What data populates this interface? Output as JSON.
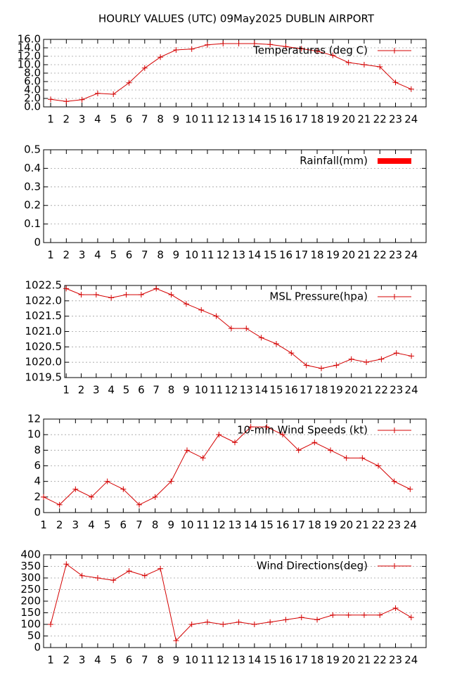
{
  "title": "HOURLY VALUES (UTC) 09May2025  DUBLIN AIRPORT",
  "chart_data": [
    {
      "type": "line",
      "ylim": [
        0,
        16
      ],
      "xlim": [
        0.55,
        24.95
      ],
      "grid": true,
      "yticks": [
        {
          "value": 0,
          "label": "0.0"
        },
        {
          "value": 2,
          "label": "2.0"
        },
        {
          "value": 4,
          "label": "4.0"
        },
        {
          "value": 6,
          "label": "6.0"
        },
        {
          "value": 8,
          "label": "8.0"
        },
        {
          "value": 10,
          "label": "10.0"
        },
        {
          "value": 12,
          "label": "12.0"
        },
        {
          "value": 14,
          "label": "14.0"
        },
        {
          "value": 16,
          "label": "16.0"
        }
      ],
      "xticks": [
        1,
        2,
        3,
        4,
        5,
        6,
        7,
        8,
        9,
        10,
        11,
        12,
        13,
        14,
        15,
        16,
        17,
        18,
        19,
        20,
        21,
        22,
        23,
        24
      ],
      "x": [
        1,
        2,
        3,
        4,
        5,
        6,
        7,
        8,
        9,
        10,
        11,
        12,
        13,
        14,
        15,
        16,
        17,
        18,
        19,
        20,
        21,
        22,
        23,
        24
      ],
      "series": [
        {
          "name": "Temperatures (deg C)",
          "color": "#d40000",
          "values": [
            1.8,
            1.3,
            1.7,
            3.2,
            3.0,
            5.7,
            9.2,
            11.8,
            13.5,
            13.7,
            14.7,
            15.0,
            15.0,
            15.0,
            14.8,
            14.3,
            13.8,
            13.2,
            12.2,
            10.5,
            10.0,
            9.5,
            5.8,
            4.2
          ]
        }
      ]
    },
    {
      "type": "bar",
      "ylim": [
        0,
        0.5
      ],
      "xlim": [
        0.55,
        24.95
      ],
      "grid": true,
      "yticks": [
        0,
        0.1,
        0.2,
        0.3,
        0.4,
        0.5
      ],
      "xticks": [
        1,
        2,
        3,
        4,
        5,
        6,
        7,
        8,
        9,
        10,
        11,
        12,
        13,
        14,
        15,
        16,
        17,
        18,
        19,
        20,
        21,
        22,
        23,
        24
      ],
      "x": [
        1,
        2,
        3,
        4,
        5,
        6,
        7,
        8,
        9,
        10,
        11,
        12,
        13,
        14,
        15,
        16,
        17,
        18,
        19,
        20,
        21,
        22,
        23,
        24
      ],
      "series": [
        {
          "name": "Rainfall(mm)",
          "color": "#ff0000",
          "values": [
            0,
            0,
            0,
            0,
            0,
            0,
            0,
            0,
            0,
            0,
            0,
            0,
            0,
            0,
            0,
            0,
            0,
            0,
            0,
            0,
            0,
            0,
            0,
            0
          ]
        }
      ]
    },
    {
      "type": "line",
      "ylim": [
        1019.5,
        1022.5
      ],
      "xlim": [
        0.9,
        24.98
      ],
      "grid": true,
      "yticks": [
        1019.5,
        {
          "value": 1020,
          "label": "1020.0"
        },
        1020.5,
        {
          "value": 1021,
          "label": "1021.0"
        },
        1021.5,
        {
          "value": 1022,
          "label": "1022.0"
        },
        1022.5
      ],
      "xticks": [
        1,
        2,
        3,
        4,
        5,
        6,
        7,
        8,
        9,
        10,
        11,
        12,
        13,
        14,
        15,
        16,
        17,
        18,
        19,
        20,
        21,
        22,
        23,
        24
      ],
      "x": [
        1,
        2,
        3,
        4,
        5,
        6,
        7,
        8,
        9,
        10,
        11,
        12,
        13,
        14,
        15,
        16,
        17,
        18,
        19,
        20,
        21,
        22,
        23,
        24
      ],
      "series": [
        {
          "name": "MSL Pressure(hpa)",
          "color": "#d40000",
          "values": [
            1022.4,
            1022.2,
            1022.2,
            1022.1,
            1022.2,
            1022.2,
            1022.4,
            1022.2,
            1021.9,
            1021.7,
            1021.5,
            1021.1,
            1021.1,
            1020.8,
            1020.6,
            1020.3,
            1019.9,
            1019.8,
            1019.9,
            1020.1,
            1020.0,
            1020.1,
            1020.3,
            1020.2
          ]
        }
      ]
    },
    {
      "type": "line",
      "ylim": [
        0,
        12
      ],
      "xlim": [
        1,
        25
      ],
      "grid": true,
      "yticks": [
        0,
        2,
        4,
        6,
        8,
        10,
        12
      ],
      "xticks": [
        1,
        2,
        3,
        4,
        5,
        6,
        7,
        8,
        9,
        10,
        11,
        12,
        13,
        14,
        15,
        16,
        17,
        18,
        19,
        20,
        21,
        22,
        23,
        24
      ],
      "x": [
        1,
        2,
        3,
        4,
        5,
        6,
        7,
        8,
        9,
        10,
        11,
        12,
        13,
        14,
        15,
        16,
        17,
        18,
        19,
        20,
        21,
        22,
        23,
        24
      ],
      "series": [
        {
          "name": "10-min Wind Speeds (kt)",
          "color": "#d40000",
          "values": [
            2,
            1,
            3,
            2,
            4,
            3,
            1,
            2,
            4,
            8,
            7,
            10,
            9,
            11,
            11,
            10,
            8,
            9,
            8,
            7,
            7,
            6,
            4,
            3
          ]
        }
      ]
    },
    {
      "type": "line",
      "ylim": [
        0,
        400
      ],
      "xlim": [
        0.55,
        24.95
      ],
      "grid": true,
      "yticks": [
        0,
        50,
        100,
        150,
        200,
        250,
        300,
        350,
        400
      ],
      "xticks": [
        1,
        2,
        3,
        4,
        5,
        6,
        7,
        8,
        9,
        10,
        11,
        12,
        13,
        14,
        15,
        16,
        17,
        18,
        19,
        20,
        21,
        22,
        23,
        24
      ],
      "x": [
        1,
        2,
        3,
        4,
        5,
        6,
        7,
        8,
        9,
        10,
        11,
        12,
        13,
        14,
        15,
        16,
        17,
        18,
        19,
        20,
        21,
        22,
        23,
        24
      ],
      "series": [
        {
          "name": "Wind Directions(deg)",
          "color": "#d40000",
          "values": [
            100,
            360,
            310,
            300,
            290,
            330,
            310,
            340,
            30,
            100,
            110,
            100,
            110,
            100,
            110,
            120,
            130,
            120,
            140,
            140,
            140,
            140,
            170,
            130
          ]
        }
      ]
    }
  ]
}
